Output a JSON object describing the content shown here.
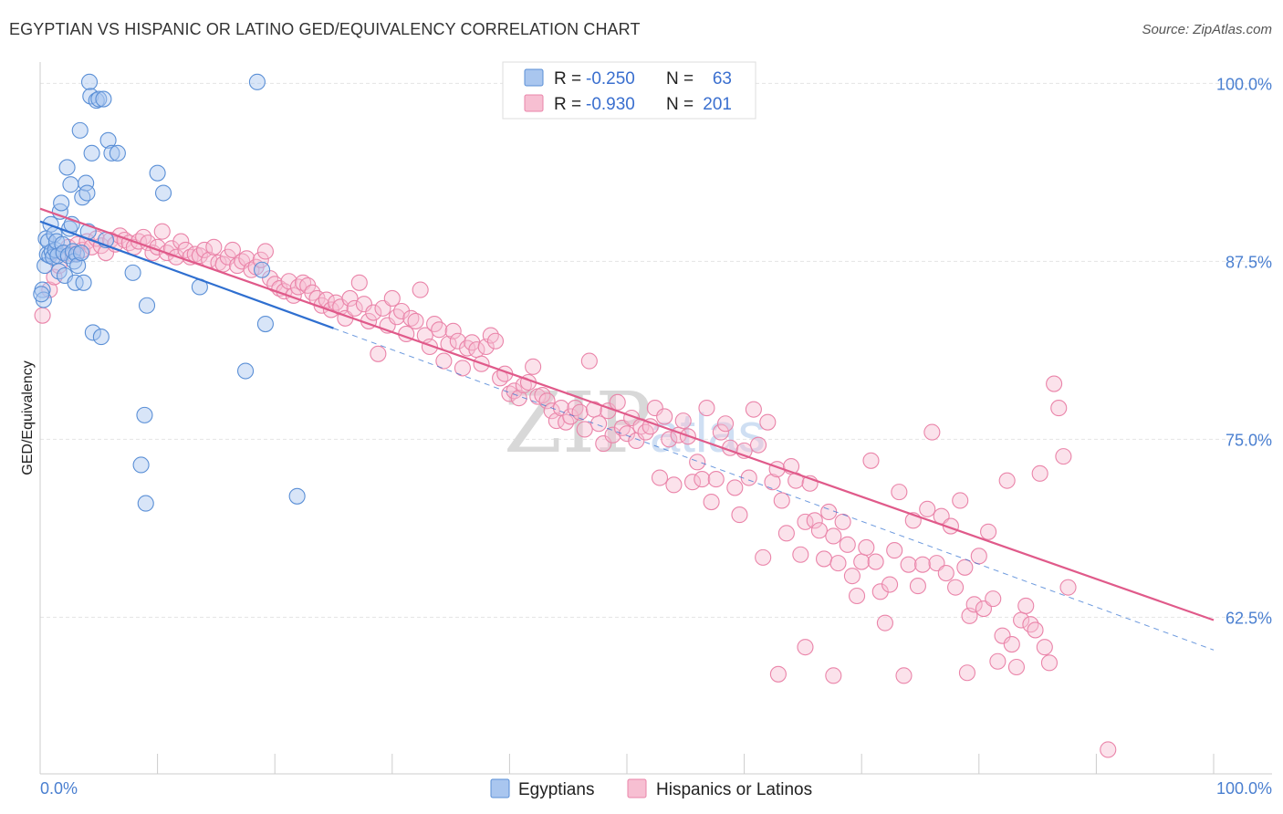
{
  "title": "EGYPTIAN VS HISPANIC OR LATINO GED/EQUIVALENCY CORRELATION CHART",
  "source": "Source: ZipAtlas.com",
  "watermark": {
    "part1": "ZIP",
    "part2": "atlas"
  },
  "legend_top": {
    "rows": [
      {
        "r_label": "R = ",
        "r_value": "-0.250",
        "n_label": "N = ",
        "n_value": "63"
      },
      {
        "r_label": "R = ",
        "r_value": "-0.930",
        "n_label": "N = ",
        "n_value": "201"
      }
    ]
  },
  "legend_bottom": {
    "items": [
      {
        "label": "Egyptians"
      },
      {
        "label": "Hispanics or Latinos"
      }
    ]
  },
  "colors": {
    "egyptians_fill": "#a9c6ef",
    "egyptians_stroke": "#5a8fd6",
    "egyptians_line": "#2f6fd0",
    "hispanic_fill": "#f7bfd2",
    "hispanic_stroke": "#ea84a9",
    "hispanic_line": "#e05a8a",
    "tick_text": "#4a7fd0"
  },
  "chart_data": {
    "type": "scatter",
    "title": "EGYPTIAN VS HISPANIC OR LATINO GED/EQUIVALENCY CORRELATION CHART",
    "xlabel": "",
    "ylabel": "GED/Equivalency",
    "xlim": [
      0,
      100
    ],
    "ylim": [
      51.5,
      101.5
    ],
    "x_tick_labels": [
      "0.0%",
      "100.0%"
    ],
    "y_ticks": [
      {
        "value": 100.0,
        "label": "100.0%"
      },
      {
        "value": 87.5,
        "label": "87.5%"
      },
      {
        "value": 75.0,
        "label": "75.0%"
      },
      {
        "value": 62.5,
        "label": "62.5%"
      }
    ],
    "grid": true,
    "legend_position": "top-center",
    "series": [
      {
        "name": "Egyptians",
        "r": -0.25,
        "n": 63,
        "trend": {
          "x": [
            0,
            25
          ],
          "y": [
            90.3,
            82.8
          ]
        },
        "trend_dashed": {
          "x": [
            25,
            100
          ],
          "y": [
            82.8,
            60.2
          ]
        },
        "points": [
          [
            0.2,
            85.5
          ],
          [
            0.3,
            84.8
          ],
          [
            0.4,
            87.2
          ],
          [
            0.5,
            89.1
          ],
          [
            0.6,
            88.0
          ],
          [
            0.7,
            88.9
          ],
          [
            0.8,
            87.9
          ],
          [
            0.9,
            90.1
          ],
          [
            1.0,
            88.2
          ],
          [
            1.1,
            87.8
          ],
          [
            1.2,
            89.4
          ],
          [
            1.3,
            88.3
          ],
          [
            1.4,
            88.9
          ],
          [
            1.5,
            87.9
          ],
          [
            1.6,
            86.8
          ],
          [
            1.7,
            91.0
          ],
          [
            1.8,
            91.6
          ],
          [
            1.9,
            88.7
          ],
          [
            2.0,
            88.1
          ],
          [
            2.1,
            86.5
          ],
          [
            2.3,
            94.1
          ],
          [
            2.4,
            87.9
          ],
          [
            2.5,
            89.8
          ],
          [
            2.6,
            92.9
          ],
          [
            2.7,
            90.1
          ],
          [
            2.8,
            88.2
          ],
          [
            2.9,
            87.5
          ],
          [
            3.0,
            86.0
          ],
          [
            3.1,
            88.0
          ],
          [
            3.2,
            87.2
          ],
          [
            3.4,
            96.7
          ],
          [
            3.5,
            88.1
          ],
          [
            3.6,
            92.0
          ],
          [
            3.7,
            86.0
          ],
          [
            3.9,
            93.0
          ],
          [
            4.0,
            92.3
          ],
          [
            4.1,
            89.6
          ],
          [
            4.2,
            100.1
          ],
          [
            4.3,
            99.1
          ],
          [
            4.4,
            95.1
          ],
          [
            4.5,
            82.5
          ],
          [
            4.8,
            98.8
          ],
          [
            5.0,
            98.9
          ],
          [
            5.2,
            82.2
          ],
          [
            5.4,
            98.9
          ],
          [
            5.6,
            89.0
          ],
          [
            5.8,
            96.0
          ],
          [
            6.1,
            95.1
          ],
          [
            6.6,
            95.1
          ],
          [
            7.9,
            86.7
          ],
          [
            8.6,
            73.2
          ],
          [
            8.9,
            76.7
          ],
          [
            9.0,
            70.5
          ],
          [
            9.1,
            84.4
          ],
          [
            10.0,
            93.7
          ],
          [
            10.5,
            92.3
          ],
          [
            13.6,
            85.7
          ],
          [
            18.5,
            100.1
          ],
          [
            18.9,
            86.9
          ],
          [
            19.2,
            83.1
          ],
          [
            17.5,
            79.8
          ],
          [
            21.9,
            71.0
          ],
          [
            0.1,
            85.2
          ]
        ]
      },
      {
        "name": "Hispanics or Latinos",
        "r": -0.93,
        "n": 201,
        "trend": {
          "x": [
            0,
            100
          ],
          "y": [
            91.2,
            62.3
          ]
        },
        "points": [
          [
            0.2,
            83.7
          ],
          [
            0.8,
            85.5
          ],
          [
            1.2,
            86.4
          ],
          [
            1.6,
            87.2
          ],
          [
            2.0,
            88.1
          ],
          [
            2.4,
            88.5
          ],
          [
            2.8,
            88.0
          ],
          [
            3.2,
            88.7
          ],
          [
            3.6,
            88.3
          ],
          [
            4.0,
            88.9
          ],
          [
            4.4,
            88.5
          ],
          [
            4.8,
            89.1
          ],
          [
            5.2,
            88.6
          ],
          [
            5.6,
            88.1
          ],
          [
            6.0,
            89.0
          ],
          [
            6.4,
            88.7
          ],
          [
            6.8,
            89.3
          ],
          [
            7.2,
            89.0
          ],
          [
            7.6,
            88.8
          ],
          [
            8.0,
            88.5
          ],
          [
            8.4,
            88.9
          ],
          [
            8.8,
            89.2
          ],
          [
            9.2,
            88.8
          ],
          [
            9.6,
            88.1
          ],
          [
            10.0,
            88.5
          ],
          [
            10.4,
            89.6
          ],
          [
            10.8,
            88.1
          ],
          [
            11.2,
            88.4
          ],
          [
            11.6,
            87.8
          ],
          [
            12.0,
            88.9
          ],
          [
            12.4,
            88.3
          ],
          [
            12.8,
            87.8
          ],
          [
            13.2,
            88.0
          ],
          [
            13.6,
            87.9
          ],
          [
            14.0,
            88.3
          ],
          [
            14.4,
            87.6
          ],
          [
            14.8,
            88.5
          ],
          [
            15.2,
            87.4
          ],
          [
            15.6,
            87.3
          ],
          [
            16.0,
            87.8
          ],
          [
            16.4,
            88.3
          ],
          [
            16.8,
            87.2
          ],
          [
            17.2,
            87.5
          ],
          [
            17.6,
            87.7
          ],
          [
            18.0,
            86.9
          ],
          [
            18.4,
            87.1
          ],
          [
            18.8,
            87.6
          ],
          [
            19.2,
            88.2
          ],
          [
            19.6,
            86.3
          ],
          [
            20.0,
            85.9
          ],
          [
            20.4,
            85.6
          ],
          [
            20.8,
            85.4
          ],
          [
            21.2,
            86.1
          ],
          [
            21.6,
            85.1
          ],
          [
            22.0,
            85.7
          ],
          [
            22.4,
            86.0
          ],
          [
            22.8,
            85.8
          ],
          [
            23.2,
            85.3
          ],
          [
            23.6,
            84.9
          ],
          [
            24.0,
            84.4
          ],
          [
            24.4,
            84.8
          ],
          [
            24.8,
            84.1
          ],
          [
            25.2,
            84.6
          ],
          [
            25.6,
            84.3
          ],
          [
            26.0,
            83.5
          ],
          [
            26.4,
            84.9
          ],
          [
            26.8,
            84.2
          ],
          [
            27.2,
            86.0
          ],
          [
            27.6,
            84.5
          ],
          [
            28.0,
            83.3
          ],
          [
            28.4,
            83.9
          ],
          [
            28.8,
            81.0
          ],
          [
            29.2,
            84.2
          ],
          [
            29.6,
            83.0
          ],
          [
            30.0,
            84.9
          ],
          [
            30.4,
            83.6
          ],
          [
            30.8,
            84.0
          ],
          [
            31.2,
            82.4
          ],
          [
            31.6,
            83.5
          ],
          [
            32.0,
            83.3
          ],
          [
            32.4,
            85.5
          ],
          [
            32.8,
            82.3
          ],
          [
            33.2,
            81.5
          ],
          [
            33.6,
            83.1
          ],
          [
            34.0,
            82.7
          ],
          [
            34.4,
            80.5
          ],
          [
            34.8,
            81.7
          ],
          [
            35.2,
            82.6
          ],
          [
            35.6,
            81.9
          ],
          [
            36.0,
            80.0
          ],
          [
            36.4,
            81.4
          ],
          [
            36.8,
            81.8
          ],
          [
            37.2,
            81.3
          ],
          [
            37.6,
            80.3
          ],
          [
            38.0,
            81.5
          ],
          [
            38.4,
            82.3
          ],
          [
            38.8,
            81.9
          ],
          [
            39.2,
            79.3
          ],
          [
            39.6,
            79.6
          ],
          [
            40.0,
            78.2
          ],
          [
            40.4,
            78.4
          ],
          [
            40.8,
            77.9
          ],
          [
            41.2,
            78.8
          ],
          [
            41.6,
            79.0
          ],
          [
            42.0,
            80.1
          ],
          [
            42.4,
            78.0
          ],
          [
            42.8,
            78.1
          ],
          [
            43.2,
            77.7
          ],
          [
            43.6,
            77.0
          ],
          [
            44.0,
            76.3
          ],
          [
            44.4,
            77.2
          ],
          [
            44.8,
            76.2
          ],
          [
            45.2,
            76.6
          ],
          [
            45.6,
            77.2
          ],
          [
            46.0,
            76.9
          ],
          [
            46.4,
            75.7
          ],
          [
            46.8,
            80.5
          ],
          [
            47.2,
            77.1
          ],
          [
            47.6,
            76.1
          ],
          [
            48.0,
            74.7
          ],
          [
            48.4,
            77.0
          ],
          [
            48.8,
            75.3
          ],
          [
            49.2,
            77.6
          ],
          [
            49.6,
            75.8
          ],
          [
            50.0,
            75.4
          ],
          [
            50.4,
            76.5
          ],
          [
            50.8,
            74.9
          ],
          [
            51.2,
            75.9
          ],
          [
            51.6,
            75.5
          ],
          [
            52.0,
            75.9
          ],
          [
            52.4,
            77.2
          ],
          [
            52.8,
            72.3
          ],
          [
            53.2,
            76.6
          ],
          [
            53.6,
            75.0
          ],
          [
            54.0,
            71.8
          ],
          [
            54.4,
            75.3
          ],
          [
            54.8,
            76.3
          ],
          [
            55.2,
            75.2
          ],
          [
            55.6,
            72.0
          ],
          [
            56.0,
            73.4
          ],
          [
            56.4,
            72.2
          ],
          [
            56.8,
            77.2
          ],
          [
            57.2,
            70.6
          ],
          [
            57.6,
            72.2
          ],
          [
            58.0,
            75.5
          ],
          [
            58.4,
            76.1
          ],
          [
            58.8,
            74.4
          ],
          [
            59.2,
            71.6
          ],
          [
            59.6,
            69.7
          ],
          [
            60.0,
            74.2
          ],
          [
            60.4,
            72.3
          ],
          [
            60.8,
            77.1
          ],
          [
            61.2,
            74.6
          ],
          [
            61.6,
            66.7
          ],
          [
            62.0,
            76.2
          ],
          [
            62.4,
            72.0
          ],
          [
            62.8,
            72.9
          ],
          [
            63.2,
            70.7
          ],
          [
            63.6,
            68.4
          ],
          [
            64.0,
            73.1
          ],
          [
            64.4,
            72.1
          ],
          [
            64.8,
            66.9
          ],
          [
            65.2,
            69.2
          ],
          [
            65.6,
            71.9
          ],
          [
            66.0,
            69.3
          ],
          [
            66.4,
            68.6
          ],
          [
            66.8,
            66.6
          ],
          [
            67.2,
            69.9
          ],
          [
            67.6,
            68.2
          ],
          [
            68.0,
            66.3
          ],
          [
            68.4,
            69.2
          ],
          [
            68.8,
            67.6
          ],
          [
            69.2,
            65.4
          ],
          [
            69.6,
            64.0
          ],
          [
            70.0,
            66.4
          ],
          [
            70.4,
            67.4
          ],
          [
            70.8,
            73.5
          ],
          [
            71.2,
            66.4
          ],
          [
            71.6,
            64.3
          ],
          [
            72.0,
            62.1
          ],
          [
            72.4,
            64.8
          ],
          [
            72.8,
            67.2
          ],
          [
            73.2,
            71.3
          ],
          [
            73.6,
            58.4
          ],
          [
            74.0,
            66.2
          ],
          [
            74.4,
            69.3
          ],
          [
            74.8,
            64.7
          ],
          [
            75.2,
            66.2
          ],
          [
            75.6,
            70.1
          ],
          [
            76.0,
            75.5
          ],
          [
            76.4,
            66.3
          ],
          [
            76.8,
            69.6
          ],
          [
            77.2,
            65.6
          ],
          [
            77.6,
            68.9
          ],
          [
            78.0,
            64.6
          ],
          [
            78.4,
            70.7
          ],
          [
            78.8,
            66.0
          ],
          [
            79.2,
            62.6
          ],
          [
            79.6,
            63.4
          ],
          [
            80.0,
            66.8
          ],
          [
            80.4,
            63.1
          ],
          [
            80.8,
            68.5
          ],
          [
            81.2,
            63.8
          ],
          [
            81.6,
            59.4
          ],
          [
            82.0,
            61.2
          ],
          [
            82.4,
            72.1
          ],
          [
            82.8,
            60.6
          ],
          [
            83.2,
            59.0
          ],
          [
            83.6,
            62.3
          ],
          [
            84.0,
            63.3
          ],
          [
            84.4,
            62.0
          ],
          [
            84.8,
            61.6
          ],
          [
            85.2,
            72.6
          ],
          [
            85.6,
            60.4
          ],
          [
            86.0,
            59.3
          ],
          [
            86.4,
            78.9
          ],
          [
            86.8,
            77.2
          ],
          [
            87.2,
            73.8
          ],
          [
            87.6,
            64.6
          ],
          [
            67.6,
            58.4
          ],
          [
            65.2,
            60.4
          ],
          [
            62.9,
            58.5
          ],
          [
            79.0,
            58.6
          ],
          [
            91.0,
            53.2
          ]
        ]
      }
    ]
  }
}
